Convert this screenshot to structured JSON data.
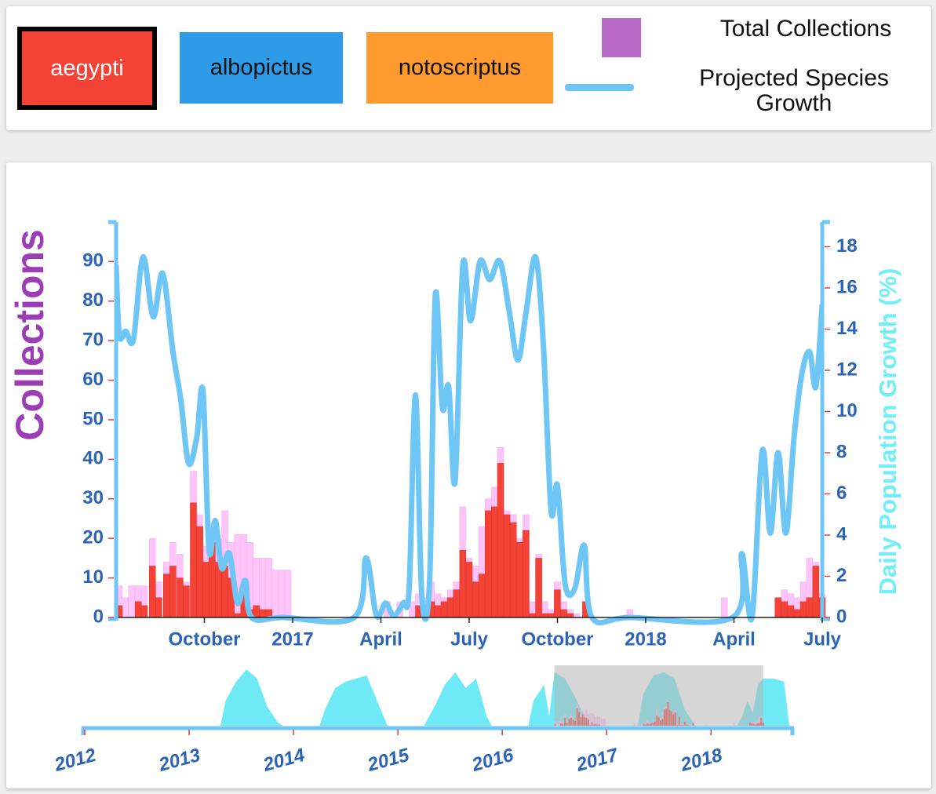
{
  "chart_data": [
    {
      "type": "bar-line",
      "ylabel": "Collections",
      "y2label": "Daily Population Growth (%)",
      "xlim": [
        2016.5,
        2018.5
      ],
      "xticks": [
        {
          "value": 2016.75,
          "label": "October"
        },
        2017,
        {
          "value": 2017.25,
          "label": "April"
        },
        {
          "value": 2017.5,
          "label": "July"
        },
        {
          "value": 2017.75,
          "label": "October"
        },
        2018,
        {
          "value": 2018.25,
          "label": "April"
        },
        {
          "value": 2018.5,
          "label": "July"
        }
      ],
      "ylim": [
        0,
        100
      ],
      "yticks": [
        0,
        10,
        20,
        30,
        40,
        50,
        60,
        70,
        80,
        90
      ],
      "y2lim": [
        0,
        19.2
      ],
      "y2ticks": [
        0,
        2,
        4,
        6,
        8,
        10,
        12,
        14,
        16,
        18
      ],
      "x": [
        2016.5,
        2016.516,
        2016.535,
        2016.554,
        2016.571,
        2016.594,
        2016.612,
        2016.634,
        2016.652,
        2016.672,
        2016.69,
        2016.71,
        2016.728,
        2016.746,
        2016.763,
        2016.781,
        2016.799,
        2016.817,
        2016.835,
        2016.853,
        2016.871,
        2016.888,
        2016.906,
        2016.924,
        2016.942,
        2016.96,
        2016.978,
        2017.259,
        2017.295,
        2017.33,
        2017.348,
        2017.366,
        2017.384,
        2017.402,
        2017.42,
        2017.438,
        2017.455,
        2017.473,
        2017.491,
        2017.509,
        2017.527,
        2017.545,
        2017.563,
        2017.58,
        2017.598,
        2017.616,
        2017.634,
        2017.652,
        2017.67,
        2017.688,
        2017.705,
        2017.723,
        2017.741,
        2017.759,
        2017.777,
        2017.795,
        2017.821,
        2017.946,
        2018.214,
        2018.366,
        2018.384,
        2018.402,
        2018.42,
        2018.438,
        2018.455,
        2018.473,
        2018.491
      ],
      "series": [
        {
          "name": "Total Collections",
          "color": "#fcc4f8",
          "legend_color": "#b96bc7",
          "values": [
            8,
            5,
            8,
            8,
            8,
            20,
            9,
            14,
            19,
            16,
            9,
            37,
            26,
            18,
            24,
            20,
            27,
            19,
            21,
            21,
            19,
            15,
            15,
            15,
            12,
            12,
            12,
            4,
            4,
            4,
            6,
            5,
            9,
            6,
            5,
            7,
            9,
            28,
            15,
            13,
            23,
            30,
            33,
            43,
            27,
            26,
            20,
            26,
            4,
            16,
            4,
            2,
            9,
            4,
            2,
            1,
            4,
            2,
            5,
            5,
            7,
            6,
            5,
            9,
            15,
            14,
            6
          ]
        },
        {
          "name": "aegypti",
          "color": "#f44336",
          "values": [
            3,
            0,
            0,
            4,
            3,
            13,
            5,
            11,
            13,
            10,
            8,
            29,
            23,
            14,
            19,
            14,
            13,
            10,
            1,
            6,
            2,
            3,
            2,
            2,
            0,
            0,
            0,
            0,
            0,
            0,
            3,
            2,
            4,
            3,
            4,
            5,
            7,
            17,
            14,
            9,
            11,
            27,
            28,
            39,
            26,
            24,
            19,
            22,
            1,
            15,
            1,
            1,
            7,
            2,
            1,
            0,
            4,
            0,
            0,
            5,
            4,
            3,
            2,
            4,
            5,
            13,
            5
          ]
        },
        {
          "name": "Projected Species Growth",
          "color": "#6ec6f6",
          "axis": "y2",
          "x": [
            2016.5,
            2016.509,
            2016.527,
            2016.549,
            2016.576,
            2016.605,
            2016.632,
            2016.661,
            2016.683,
            2016.705,
            2016.728,
            2016.746,
            2016.763,
            2016.781,
            2016.799,
            2016.821,
            2016.844,
            2016.866,
            2016.884,
            2016.973,
            2017.174,
            2017.208,
            2017.237,
            2017.263,
            2017.286,
            2017.313,
            2017.33,
            2017.348,
            2017.366,
            2017.388,
            2017.404,
            2017.424,
            2017.442,
            2017.46,
            2017.482,
            2017.504,
            2017.531,
            2017.558,
            2017.587,
            2017.614,
            2017.638,
            2017.661,
            2017.688,
            2017.71,
            2017.732,
            2017.75,
            2017.772,
            2017.799,
            2017.826,
            2017.848,
            2017.955,
            2018.246,
            2018.272,
            2018.301,
            2018.33,
            2018.353,
            2018.375,
            2018.397,
            2018.42,
            2018.442,
            2018.464,
            2018.482,
            2018.5
          ],
          "values": [
            17.1,
            13.7,
            13.9,
            13.5,
            17.5,
            14.6,
            16.7,
            12.9,
            10.6,
            7.5,
            8.7,
            11.0,
            3.3,
            4.7,
            2.4,
            3.1,
            0.7,
            1.8,
            0,
            0,
            0,
            2.9,
            0.1,
            0.7,
            0.1,
            0.7,
            1.4,
            10.8,
            1.0,
            1.8,
            15.6,
            10.2,
            11.2,
            6.6,
            17.1,
            14.4,
            17.3,
            16.4,
            17.3,
            14.8,
            12.5,
            14.8,
            17.5,
            13.3,
            5.2,
            6.4,
            1.6,
            1.4,
            3.5,
            0,
            0,
            0,
            3.1,
            0,
            8.1,
            4.1,
            8.0,
            4.1,
            8.7,
            11.8,
            12.9,
            11.2,
            15.2
          ]
        }
      ]
    },
    {
      "type": "area",
      "color": "#5ee8f5",
      "xlim": [
        2012,
        2018.78
      ],
      "xticks": [
        2012,
        2013,
        2014,
        2015,
        2016,
        2017,
        2018
      ],
      "ylim": [
        0,
        19.2
      ],
      "x": [
        2013.3,
        2013.35,
        2013.45,
        2013.55,
        2013.65,
        2013.75,
        2013.85,
        2013.9,
        2014.25,
        2014.3,
        2014.4,
        2014.5,
        2014.6,
        2014.7,
        2014.8,
        2014.9,
        2015.25,
        2015.35,
        2015.45,
        2015.55,
        2015.65,
        2015.75,
        2015.85,
        2015.9,
        2016.25,
        2016.3,
        2016.4,
        2016.45,
        2016.5,
        2016.6,
        2016.7,
        2016.8,
        2016.85,
        2017.3,
        2017.35,
        2017.45,
        2017.55,
        2017.65,
        2017.75,
        2017.85,
        2018.25,
        2018.3,
        2018.35,
        2018.4,
        2018.45,
        2018.5,
        2018.6,
        2018.7,
        2018.75
      ],
      "values": [
        0,
        8,
        14,
        18,
        15,
        6,
        1,
        0,
        0,
        5,
        12,
        14,
        15,
        16,
        8,
        0,
        0,
        6,
        13,
        17,
        12,
        15,
        3,
        0,
        0,
        8,
        13,
        3,
        17,
        15,
        9,
        2,
        0,
        0,
        10,
        16,
        17,
        15,
        5,
        0,
        0,
        3,
        8,
        4,
        13,
        15,
        15,
        14,
        0
      ]
    }
  ],
  "other_species": [
    {
      "label": "albopictus",
      "color": "#2d9be8"
    },
    {
      "label": "notoscriptus",
      "color": "#ff9a2e"
    }
  ]
}
